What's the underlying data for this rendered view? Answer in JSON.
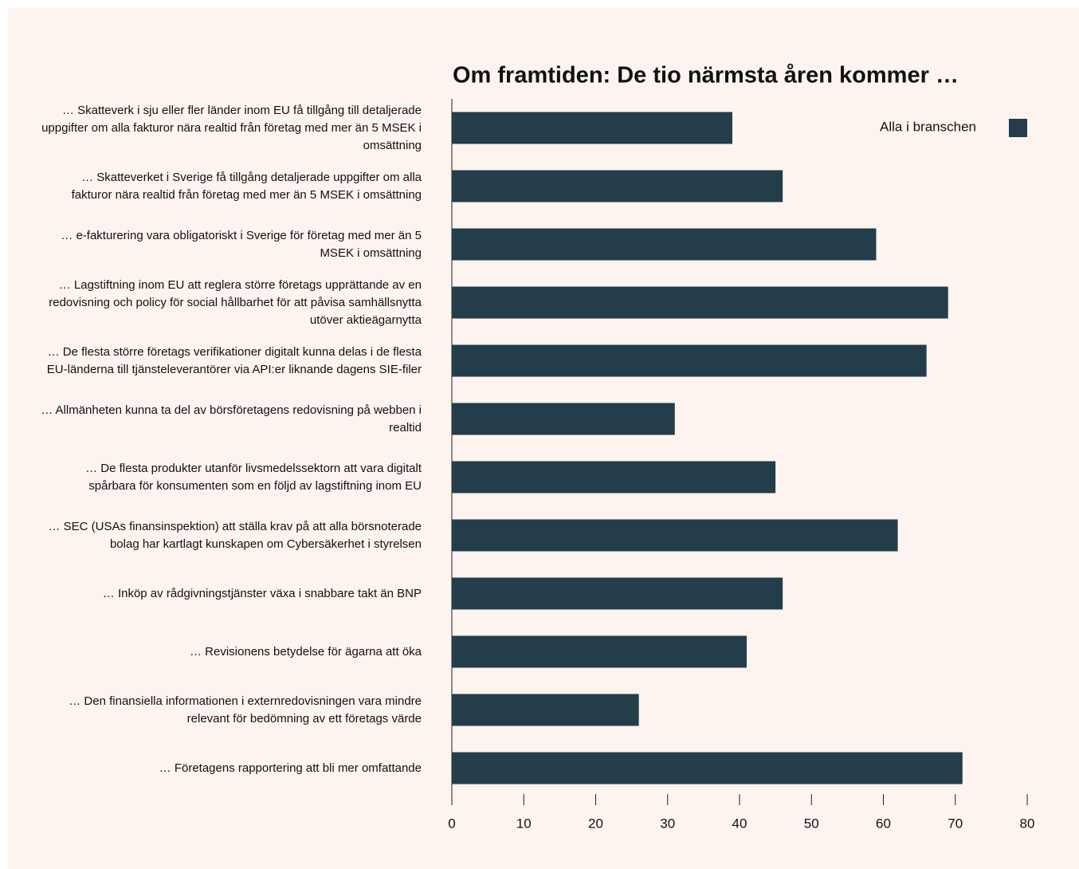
{
  "chart_data": {
    "type": "barh",
    "title": "Om framtiden: De tio närmsta åren kommer …",
    "categories": [
      "… Skatteverk i sju eller fler länder inom EU få tillgång till detaljerade uppgifter om alla fakturor nära realtid från företag med mer än 5 MSEK i omsättning",
      "… Skatteverket i Sverige få tillgång detaljerade uppgifter om alla fakturor nära realtid från företag med mer än 5 MSEK i omsättning",
      "… e-fakturering vara obligatoriskt i Sverige för företag med mer än 5 MSEK i omsättning",
      "… Lagstiftning inom EU att reglera större företags upprättande av en redovisning och policy för social hållbarhet för att påvisa samhällsnytta utöver aktieägarnytta",
      "… De flesta större företags verifikationer digitalt kunna delas i de flesta EU-länderna till tjänsteleverantörer via API:er liknande dagens SIE-filer",
      "… Allmänheten kunna ta del av börsföretagens redovisning på webben i realtid",
      "… De flesta produkter utanför livsmedelssektorn att vara digitalt spårbara för konsumenten som en följd av lagstiftning inom EU",
      "… SEC (USAs finansinspektion) att ställa krav på att alla börsnoterade bolag har kartlagt kunskapen om Cybersäkerhet i styrelsen",
      "… Inköp av rådgivningstjänster växa i snabbare takt än BNP",
      "… Revisionens betydelse för ägarna att öka",
      "… Den finansiella informationen i externredovisningen vara mindre relevant för bedömning av ett företags värde",
      "… Företagens rapportering att bli mer omfattande"
    ],
    "series": [
      {
        "name": "Alla i branschen",
        "color": "#233d4a",
        "values": [
          39,
          46,
          59,
          69,
          66,
          31,
          45,
          62,
          46,
          41,
          26,
          71
        ]
      }
    ],
    "xlim": [
      0,
      80
    ],
    "xticks": [
      0,
      10,
      20,
      30,
      40,
      50,
      60,
      70,
      80
    ],
    "legend": "upper right"
  }
}
